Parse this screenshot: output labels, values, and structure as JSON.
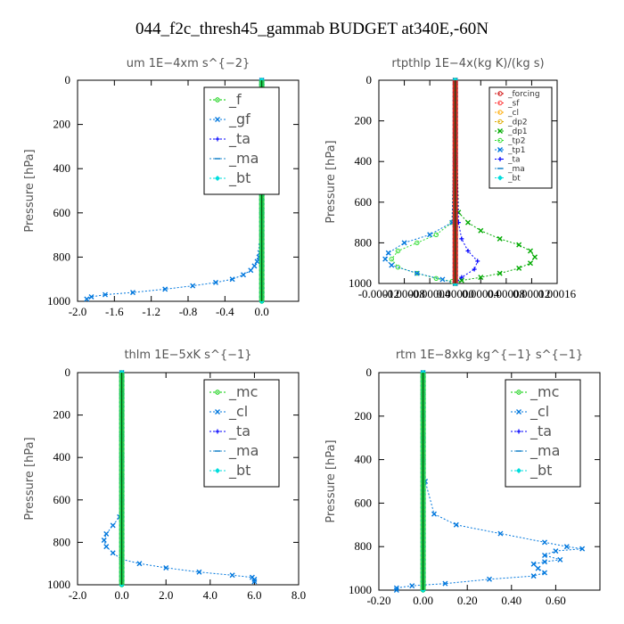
{
  "figure": {
    "title": "044_f2c_thresh45_gammab  BUDGET at340E,-60N"
  },
  "chart_data": [
    {
      "type": "line",
      "title": "um   1E−4xm  s^{−2}",
      "ylabel": "Pressure  [hPa]",
      "xlim": [
        -2.0,
        0.4
      ],
      "ylim": [
        1000,
        0
      ],
      "xticks": [
        "-2.0",
        "-1.6",
        "-1.2",
        "-0.8",
        "-0.4",
        "0.0"
      ],
      "yticks": [
        "0",
        "200",
        "400",
        "600",
        "800",
        "1000"
      ],
      "legend_position": "top-right",
      "legend_font": "large",
      "series": [
        {
          "name": "_f",
          "color": "#00cc00",
          "marker": "circle",
          "x": [
            0,
            0
          ],
          "y": [
            0,
            1000
          ]
        },
        {
          "name": "_gf",
          "color": "#0077dd",
          "marker": "cross",
          "x": [
            0,
            0,
            0,
            0,
            0,
            0,
            0,
            0,
            0,
            -0.01,
            -0.02,
            -0.03,
            -0.05,
            -0.08,
            -0.12,
            -0.2,
            -0.32,
            -0.5,
            -0.75,
            -1.05,
            -1.4,
            -1.7,
            -1.85,
            -1.9
          ],
          "y": [
            0,
            100,
            200,
            300,
            400,
            500,
            600,
            650,
            700,
            750,
            780,
            800,
            820,
            840,
            860,
            880,
            900,
            915,
            930,
            945,
            960,
            970,
            980,
            990
          ]
        },
        {
          "name": "_ta",
          "color": "#0000ff",
          "marker": "plus",
          "x": [
            0,
            0
          ],
          "y": [
            0,
            1000
          ]
        },
        {
          "name": "_ma",
          "color": "#2288cc",
          "marker": "dash",
          "x": [
            0,
            0
          ],
          "y": [
            0,
            1000
          ]
        },
        {
          "name": "_bt",
          "color": "#00dddd",
          "marker": "diamond",
          "x": [
            0,
            0
          ],
          "y": [
            0,
            1000
          ]
        }
      ]
    },
    {
      "type": "line",
      "title": "rtpthlp   1E−4x(kg K)/(kg s)",
      "ylabel": "Pressure  [hPa]",
      "xlim": [
        -0.00012,
        0.00016
      ],
      "ylim": [
        1000,
        0
      ],
      "xticks": [
        "-0.00012",
        "-0.00008",
        "-0.00004",
        "0.00000",
        "0.00004",
        "0.00008",
        "0.00012",
        "0.00016"
      ],
      "yticks": [
        "0",
        "200",
        "400",
        "600",
        "800",
        "1000"
      ],
      "legend_position": "top-right",
      "legend_font": "small",
      "series": [
        {
          "name": "_forcing",
          "color": "#cc0000",
          "marker": "circle",
          "x": [
            0,
            0
          ],
          "y": [
            0,
            1000
          ]
        },
        {
          "name": "_sf",
          "color": "#ff3333",
          "marker": "circle",
          "x": [
            0,
            0
          ],
          "y": [
            0,
            1000
          ]
        },
        {
          "name": "_cl",
          "color": "#ffaa00",
          "marker": "circle",
          "x": [
            0,
            0
          ],
          "y": [
            0,
            1000
          ]
        },
        {
          "name": "_dp2",
          "color": "#ddaa00",
          "marker": "circle",
          "x": [
            0,
            0
          ],
          "y": [
            0,
            1000
          ]
        },
        {
          "name": "_dp1",
          "color": "#00aa00",
          "marker": "cross",
          "x": [
            0,
            5e-06,
            2e-05,
            4e-05,
            7e-05,
            0.0001,
            0.000118,
            0.000125,
            0.000118,
            0.0001,
            7e-05,
            4e-05,
            1e-05,
            0
          ],
          "y": [
            0,
            650,
            700,
            740,
            780,
            810,
            840,
            870,
            900,
            925,
            950,
            970,
            985,
            1000
          ]
        },
        {
          "name": "_tp2",
          "color": "#33dd33",
          "marker": "circle",
          "x": [
            0,
            -5e-06,
            -3e-05,
            -6e-05,
            -9e-05,
            -0.0001,
            -9e-05,
            -6e-05,
            -3e-05,
            -5e-06,
            0
          ],
          "y": [
            0,
            700,
            760,
            800,
            840,
            880,
            920,
            950,
            975,
            990,
            1000
          ]
        },
        {
          "name": "_tp1",
          "color": "#0077dd",
          "marker": "cross",
          "x": [
            0,
            -5e-06,
            -4e-05,
            -8e-05,
            -0.000105,
            -0.00011,
            -0.0001,
            -6e-05,
            -2e-05,
            0
          ],
          "y": [
            0,
            700,
            760,
            800,
            850,
            880,
            910,
            950,
            980,
            1000
          ]
        },
        {
          "name": "_ta",
          "color": "#0000ff",
          "marker": "plus",
          "x": [
            0,
            5e-06,
            1e-05,
            2e-05,
            3.5e-05,
            3e-05,
            1e-05,
            0
          ],
          "y": [
            0,
            700,
            780,
            840,
            890,
            930,
            970,
            1000
          ]
        },
        {
          "name": "_ma",
          "color": "#2288cc",
          "marker": "dash",
          "x": [
            0,
            0
          ],
          "y": [
            0,
            1000
          ]
        },
        {
          "name": "_bt",
          "color": "#00dddd",
          "marker": "diamond",
          "x": [
            0,
            0
          ],
          "y": [
            0,
            1000
          ]
        }
      ]
    },
    {
      "type": "line",
      "title": "thlm   1E−5xK  s^{−1}",
      "ylabel": "Pressure  [hPa]",
      "xlim": [
        -2.0,
        8.0
      ],
      "ylim": [
        1000,
        0
      ],
      "xticks": [
        "-2.0",
        "0.0",
        "2.0",
        "4.0",
        "6.0",
        "8.0"
      ],
      "yticks": [
        "0",
        "200",
        "400",
        "600",
        "800",
        "1000"
      ],
      "legend_position": "top-right",
      "legend_font": "large",
      "series": [
        {
          "name": "_mc",
          "color": "#00cc00",
          "marker": "circle",
          "x": [
            0,
            0
          ],
          "y": [
            0,
            1000
          ]
        },
        {
          "name": "_cl",
          "color": "#0077dd",
          "marker": "cross",
          "x": [
            0,
            0,
            0,
            0,
            0,
            0,
            0,
            -0.1,
            -0.4,
            -0.7,
            -0.8,
            -0.7,
            -0.4,
            0,
            0.8,
            2.0,
            3.5,
            5.0,
            5.9,
            6.0,
            6.0
          ],
          "y": [
            0,
            100,
            200,
            300,
            400,
            500,
            600,
            680,
            720,
            760,
            790,
            820,
            850,
            880,
            900,
            920,
            940,
            955,
            965,
            975,
            985
          ]
        },
        {
          "name": "_ta",
          "color": "#0000ff",
          "marker": "plus",
          "x": [
            0,
            0
          ],
          "y": [
            0,
            1000
          ]
        },
        {
          "name": "_ma",
          "color": "#2288cc",
          "marker": "dash",
          "x": [
            0,
            0
          ],
          "y": [
            0,
            1000
          ]
        },
        {
          "name": "_bt",
          "color": "#00dddd",
          "marker": "diamond",
          "x": [
            0,
            0
          ],
          "y": [
            0,
            1000
          ]
        }
      ]
    },
    {
      "type": "line",
      "title": "rtm   1E−8xkg  kg^{−1}  s^{−1}",
      "ylabel": "Pressure  [hPa]",
      "xlim": [
        -0.2,
        0.8
      ],
      "ylim": [
        1000,
        0
      ],
      "xticks": [
        "-0.20",
        "0.00",
        "0.20",
        "0.40",
        "0.60"
      ],
      "yticks": [
        "0",
        "200",
        "400",
        "600",
        "800",
        "1000"
      ],
      "legend_position": "top-right",
      "legend_font": "large",
      "series": [
        {
          "name": "_mc",
          "color": "#00cc00",
          "marker": "circle",
          "x": [
            0,
            0
          ],
          "y": [
            0,
            1000
          ]
        },
        {
          "name": "_cl",
          "color": "#0077dd",
          "marker": "cross",
          "x": [
            0,
            0,
            0,
            0,
            0,
            0.01,
            0.05,
            0.15,
            0.35,
            0.55,
            0.65,
            0.72,
            0.6,
            0.55,
            0.62,
            0.55,
            0.5,
            0.52,
            0.55,
            0.5,
            0.3,
            0.1,
            -0.05,
            -0.12,
            -0.12
          ],
          "y": [
            0,
            100,
            200,
            300,
            400,
            500,
            650,
            700,
            740,
            780,
            800,
            810,
            820,
            840,
            860,
            870,
            880,
            900,
            920,
            935,
            950,
            970,
            980,
            990,
            1000
          ]
        },
        {
          "name": "_ta",
          "color": "#0000ff",
          "marker": "plus",
          "x": [
            0,
            0
          ],
          "y": [
            0,
            1000
          ]
        },
        {
          "name": "_ma",
          "color": "#2288cc",
          "marker": "dash",
          "x": [
            0,
            0
          ],
          "y": [
            0,
            1000
          ]
        },
        {
          "name": "_bt",
          "color": "#00dddd",
          "marker": "diamond",
          "x": [
            0,
            0
          ],
          "y": [
            0,
            1000
          ]
        }
      ]
    }
  ]
}
